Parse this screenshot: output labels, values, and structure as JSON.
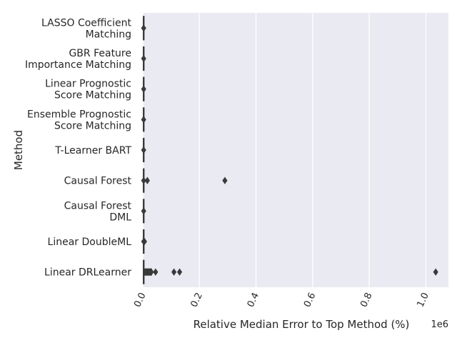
{
  "chart_data": {
    "type": "boxplot",
    "orientation": "horizontal",
    "xlabel": "Relative Median Error to Top Method (%)",
    "ylabel": "Method",
    "x_scale_label": "1e6",
    "xlim": [
      0,
      1.08
    ],
    "xticks": [
      0.0,
      0.2,
      0.4,
      0.6,
      0.8,
      1.0
    ],
    "xtick_labels": [
      "0.0",
      "0.2",
      "0.4",
      "0.6",
      "0.8",
      "1.0"
    ],
    "grid": "vertical",
    "background": "#eaeaf2",
    "box_color": "#3a3a3a",
    "categories": [
      {
        "label_lines": [
          "LASSO Coefficient",
          "Matching"
        ],
        "median": 0.003,
        "outliers": [
          0.003
        ]
      },
      {
        "label_lines": [
          "GBR Feature",
          "Importance Matching"
        ],
        "median": 0.003,
        "outliers": [
          0.003
        ]
      },
      {
        "label_lines": [
          "Linear Prognostic",
          "Score Matching"
        ],
        "median": 0.003,
        "outliers": [
          0.003
        ]
      },
      {
        "label_lines": [
          "Ensemble Prognostic",
          "Score Matching"
        ],
        "median": 0.003,
        "outliers": [
          0.003
        ]
      },
      {
        "label_lines": [
          "T-Learner BART"
        ],
        "median": 0.003,
        "outliers": [
          0.003
        ]
      },
      {
        "label_lines": [
          "Causal Forest"
        ],
        "median": 0.003,
        "outliers": [
          0.003,
          0.016,
          0.29
        ]
      },
      {
        "label_lines": [
          "Causal Forest",
          "DML"
        ],
        "median": 0.003,
        "outliers": [
          0.003
        ]
      },
      {
        "label_lines": [
          "Linear DoubleML"
        ],
        "median": 0.003,
        "outliers": [
          0.003,
          0.006
        ]
      },
      {
        "label_lines": [
          "Linear DRLearner"
        ],
        "median": 0.003,
        "outliers": [
          0.01,
          0.02,
          0.03,
          0.045,
          0.11,
          0.13,
          1.035
        ]
      }
    ]
  }
}
